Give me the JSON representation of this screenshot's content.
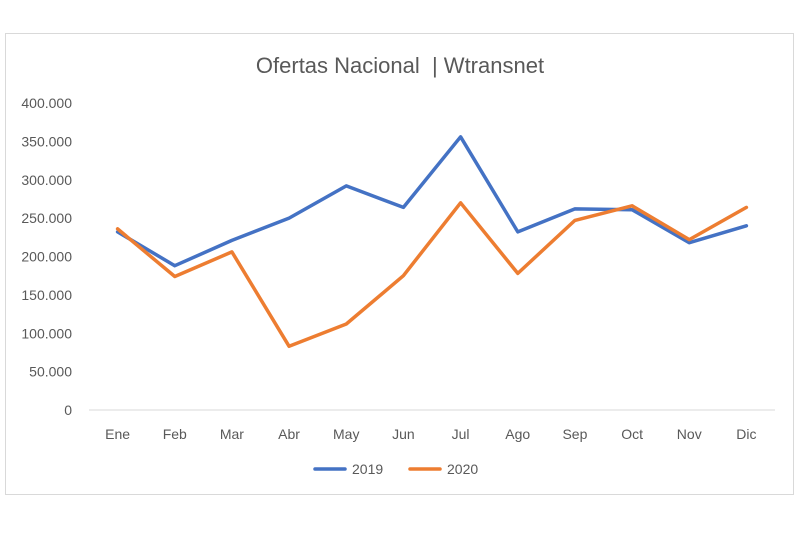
{
  "chart_data": {
    "type": "line",
    "title": "Ofertas Nacional  | Wtransnet",
    "categories": [
      "Ene",
      "Feb",
      "Mar",
      "Abr",
      "May",
      "Jun",
      "Jul",
      "Ago",
      "Sep",
      "Oct",
      "Nov",
      "Dic"
    ],
    "ylim": [
      0,
      400000
    ],
    "yticks": [
      "0",
      "50.000",
      "100.000",
      "150.000",
      "200.000",
      "250.000",
      "300.000",
      "350.000",
      "400.000"
    ],
    "grid": false,
    "legend_position": "bottom",
    "series": [
      {
        "name": "2019",
        "color": "#4472C4",
        "values": [
          232000,
          188000,
          221000,
          250000,
          292000,
          264000,
          356000,
          232000,
          262000,
          261000,
          218000,
          240000
        ]
      },
      {
        "name": "2020",
        "color": "#ED7D31",
        "values": [
          236000,
          174000,
          206000,
          83000,
          112000,
          175000,
          270000,
          178000,
          247000,
          266000,
          222000,
          264000
        ]
      }
    ]
  }
}
